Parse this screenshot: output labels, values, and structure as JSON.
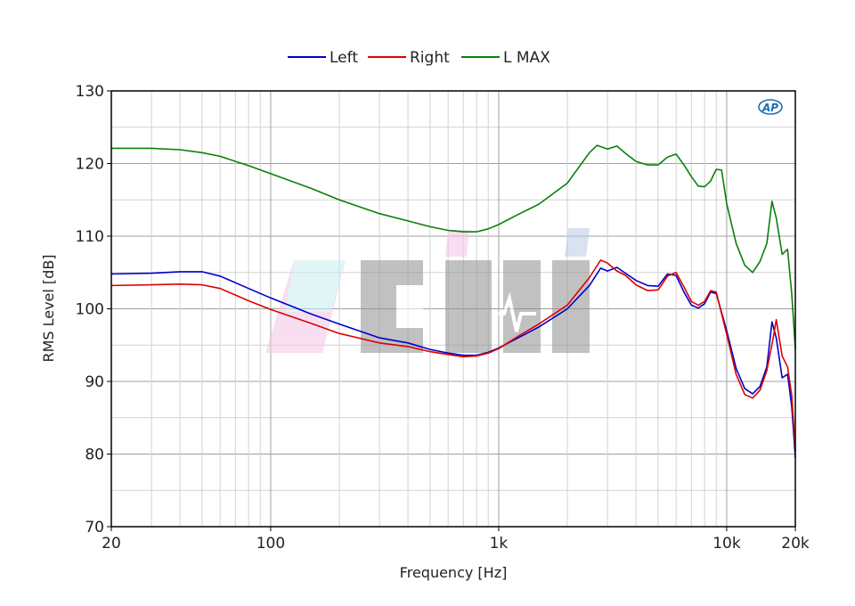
{
  "chart_data": {
    "type": "line",
    "title": "",
    "xlabel": "Frequency [Hz]",
    "ylabel": "RMS Level [dB]",
    "x_scale": "log",
    "xlim": [
      20,
      20000
    ],
    "ylim": [
      70,
      130
    ],
    "grid": true,
    "legend_position": "top-center",
    "x_ticks": [
      {
        "value": 20,
        "label": "20"
      },
      {
        "value": 100,
        "label": "100"
      },
      {
        "value": 1000,
        "label": "1k"
      },
      {
        "value": 10000,
        "label": "10k"
      },
      {
        "value": 20000,
        "label": "20k"
      }
    ],
    "y_ticks": [
      70,
      80,
      90,
      100,
      110,
      120,
      130
    ],
    "series": [
      {
        "name": "Left",
        "color": "#0000cc",
        "points": [
          [
            20,
            104.8
          ],
          [
            30,
            104.9
          ],
          [
            40,
            105.1
          ],
          [
            50,
            105.1
          ],
          [
            60,
            104.5
          ],
          [
            80,
            102.8
          ],
          [
            100,
            101.5
          ],
          [
            150,
            99.3
          ],
          [
            200,
            97.9
          ],
          [
            300,
            96.0
          ],
          [
            400,
            95.3
          ],
          [
            500,
            94.4
          ],
          [
            600,
            93.9
          ],
          [
            700,
            93.6
          ],
          [
            800,
            93.6
          ],
          [
            900,
            94.0
          ],
          [
            1000,
            94.6
          ],
          [
            1200,
            95.9
          ],
          [
            1500,
            97.5
          ],
          [
            2000,
            100.0
          ],
          [
            2500,
            103.2
          ],
          [
            2800,
            105.6
          ],
          [
            3000,
            105.2
          ],
          [
            3300,
            105.7
          ],
          [
            3600,
            104.9
          ],
          [
            4000,
            103.9
          ],
          [
            4500,
            103.2
          ],
          [
            5000,
            103.1
          ],
          [
            5500,
            104.8
          ],
          [
            6000,
            104.6
          ],
          [
            6500,
            102.3
          ],
          [
            7000,
            100.5
          ],
          [
            7500,
            100.1
          ],
          [
            8000,
            100.7
          ],
          [
            8500,
            102.3
          ],
          [
            9000,
            102.1
          ],
          [
            10000,
            97.0
          ],
          [
            11000,
            91.8
          ],
          [
            12000,
            89.0
          ],
          [
            13000,
            88.3
          ],
          [
            14000,
            89.3
          ],
          [
            15000,
            92.0
          ],
          [
            15800,
            98.2
          ],
          [
            16500,
            96.0
          ],
          [
            17500,
            90.5
          ],
          [
            18500,
            91.0
          ],
          [
            19300,
            86.5
          ],
          [
            20000,
            79.5
          ]
        ]
      },
      {
        "name": "Right",
        "color": "#dd0000",
        "points": [
          [
            20,
            103.2
          ],
          [
            30,
            103.3
          ],
          [
            40,
            103.4
          ],
          [
            50,
            103.3
          ],
          [
            60,
            102.8
          ],
          [
            80,
            101.1
          ],
          [
            100,
            99.9
          ],
          [
            150,
            98.0
          ],
          [
            200,
            96.6
          ],
          [
            300,
            95.3
          ],
          [
            400,
            94.8
          ],
          [
            500,
            94.1
          ],
          [
            600,
            93.7
          ],
          [
            700,
            93.4
          ],
          [
            800,
            93.5
          ],
          [
            900,
            93.9
          ],
          [
            1000,
            94.5
          ],
          [
            1200,
            96.1
          ],
          [
            1500,
            97.9
          ],
          [
            2000,
            100.5
          ],
          [
            2500,
            104.3
          ],
          [
            2800,
            106.7
          ],
          [
            3000,
            106.3
          ],
          [
            3300,
            105.2
          ],
          [
            3600,
            104.6
          ],
          [
            4000,
            103.3
          ],
          [
            4500,
            102.5
          ],
          [
            5000,
            102.6
          ],
          [
            5500,
            104.5
          ],
          [
            6000,
            105.0
          ],
          [
            6500,
            103.0
          ],
          [
            7000,
            101.0
          ],
          [
            7500,
            100.5
          ],
          [
            8000,
            101.0
          ],
          [
            8500,
            102.5
          ],
          [
            9000,
            102.3
          ],
          [
            10000,
            96.5
          ],
          [
            11000,
            91.0
          ],
          [
            12000,
            88.2
          ],
          [
            13000,
            87.7
          ],
          [
            14000,
            88.8
          ],
          [
            15000,
            91.5
          ],
          [
            16000,
            96.0
          ],
          [
            16500,
            98.5
          ],
          [
            17500,
            93.5
          ],
          [
            18500,
            92.0
          ],
          [
            19300,
            88.0
          ],
          [
            20000,
            80.5
          ]
        ]
      },
      {
        "name": "L MAX",
        "color": "#0a800a",
        "points": [
          [
            20,
            122.1
          ],
          [
            30,
            122.1
          ],
          [
            40,
            121.9
          ],
          [
            50,
            121.5
          ],
          [
            60,
            121.0
          ],
          [
            80,
            119.7
          ],
          [
            100,
            118.6
          ],
          [
            150,
            116.6
          ],
          [
            200,
            115.0
          ],
          [
            300,
            113.1
          ],
          [
            400,
            112.1
          ],
          [
            500,
            111.3
          ],
          [
            600,
            110.8
          ],
          [
            700,
            110.6
          ],
          [
            800,
            110.6
          ],
          [
            900,
            111.0
          ],
          [
            1000,
            111.6
          ],
          [
            1200,
            112.9
          ],
          [
            1500,
            114.4
          ],
          [
            2000,
            117.3
          ],
          [
            2500,
            121.5
          ],
          [
            2700,
            122.5
          ],
          [
            3000,
            122.0
          ],
          [
            3300,
            122.4
          ],
          [
            3600,
            121.4
          ],
          [
            4000,
            120.3
          ],
          [
            4500,
            119.8
          ],
          [
            5000,
            119.8
          ],
          [
            5500,
            120.9
          ],
          [
            6000,
            121.3
          ],
          [
            6500,
            119.8
          ],
          [
            7000,
            118.2
          ],
          [
            7500,
            116.9
          ],
          [
            8000,
            116.8
          ],
          [
            8500,
            117.6
          ],
          [
            9000,
            119.2
          ],
          [
            9500,
            119.1
          ],
          [
            10000,
            114.5
          ],
          [
            11000,
            109.0
          ],
          [
            12000,
            106.0
          ],
          [
            13000,
            105.0
          ],
          [
            14000,
            106.5
          ],
          [
            15000,
            109.0
          ],
          [
            15800,
            114.8
          ],
          [
            16500,
            112.5
          ],
          [
            17500,
            107.5
          ],
          [
            18500,
            108.2
          ],
          [
            19300,
            102.0
          ],
          [
            20000,
            94.5
          ]
        ]
      }
    ]
  },
  "badge": {
    "text": "AP",
    "color": "#1e6fb5"
  },
  "watermark": {
    "name": "acinhi-watermark-logo"
  }
}
